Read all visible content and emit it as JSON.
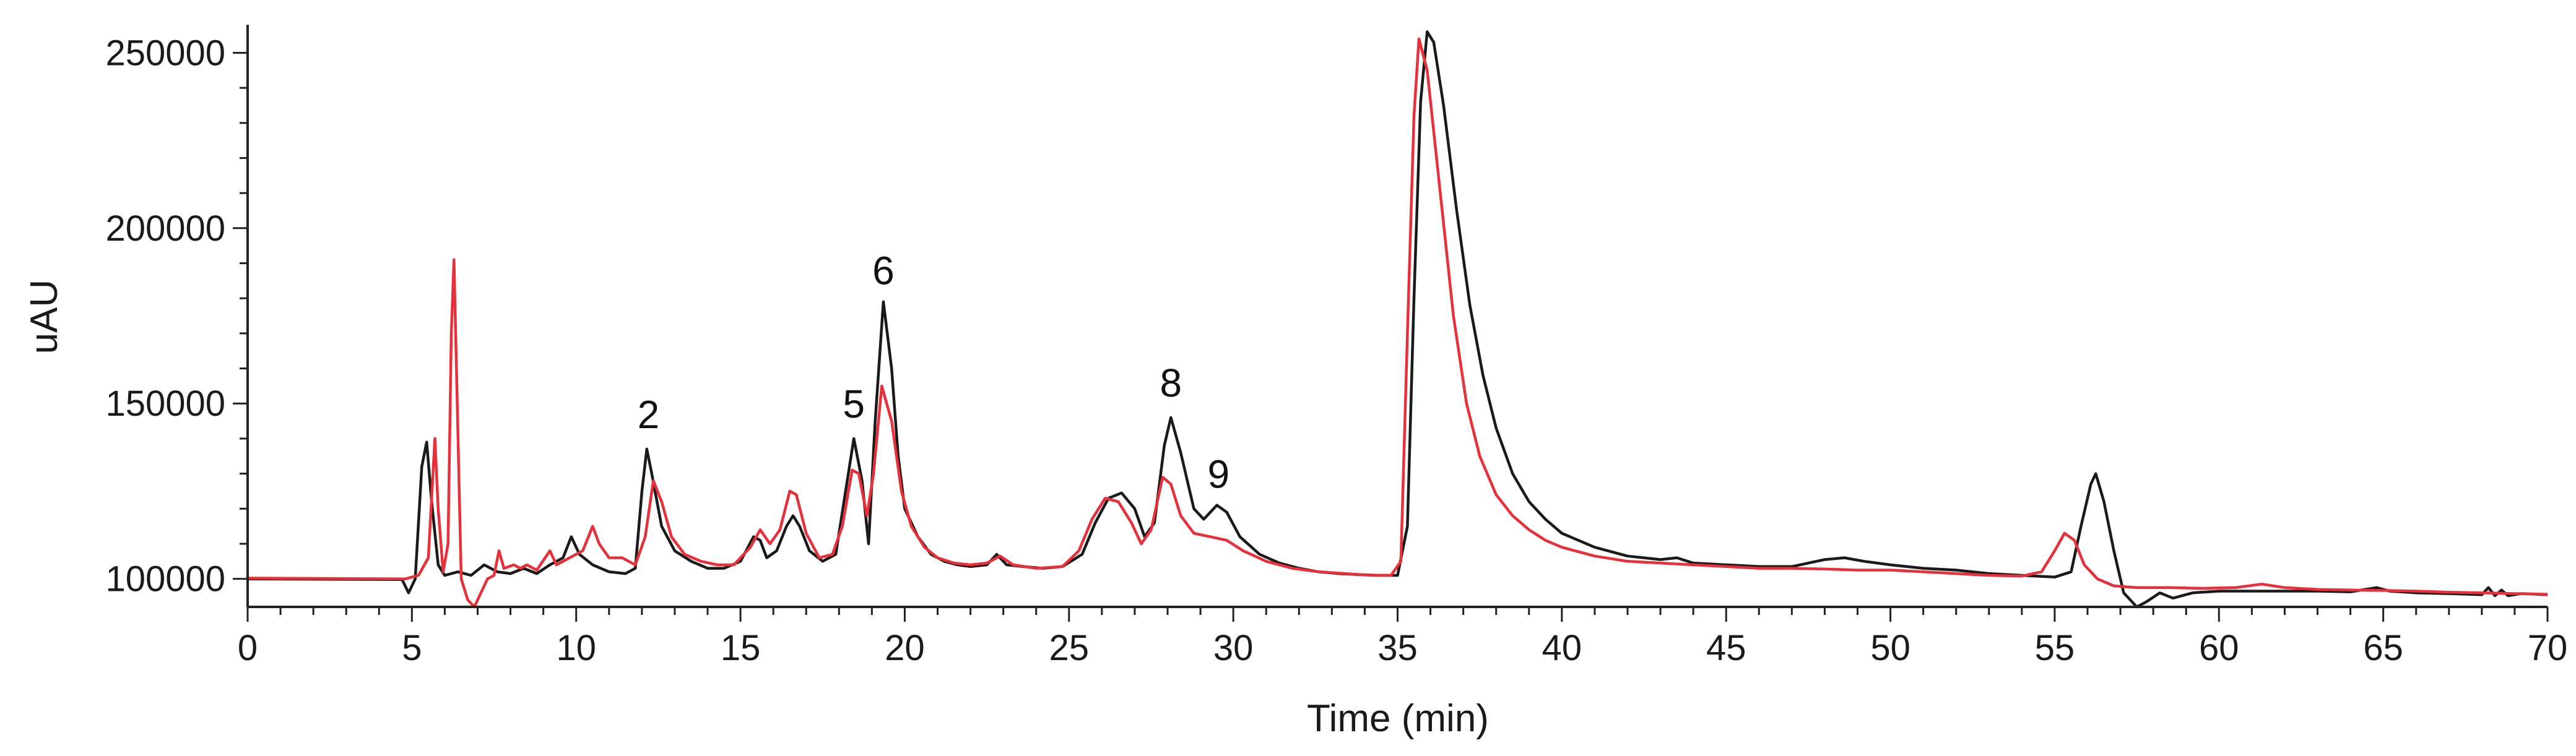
{
  "chart_data": {
    "type": "line",
    "title": "",
    "xlabel": "Time (min)",
    "ylabel": "uAU",
    "xlim": [
      0,
      70
    ],
    "ylim": [
      92000,
      258000
    ],
    "x_ticks": [
      0,
      5,
      10,
      15,
      20,
      25,
      30,
      35,
      40,
      45,
      50,
      55,
      60,
      65,
      70
    ],
    "y_ticks": [
      100000,
      150000,
      200000,
      250000
    ],
    "x_tick_labels": [
      "0",
      "5",
      "10",
      "15",
      "20",
      "25",
      "30",
      "35",
      "40",
      "45",
      "50",
      "55",
      "60",
      "65",
      "70"
    ],
    "y_tick_labels": [
      "100000",
      "150000",
      "200000",
      "250000"
    ],
    "grid": false,
    "legend": "none",
    "series": [
      {
        "color": "#1a1a1a",
        "points": [
          [
            0,
            100000
          ],
          [
            4.7,
            99800
          ],
          [
            4.9,
            96000
          ],
          [
            5.1,
            100000
          ],
          [
            5.3,
            132000
          ],
          [
            5.45,
            139000
          ],
          [
            5.6,
            122000
          ],
          [
            5.8,
            104000
          ],
          [
            6.0,
            101000
          ],
          [
            6.4,
            102000
          ],
          [
            6.8,
            101000
          ],
          [
            7.2,
            104000
          ],
          [
            7.6,
            102000
          ],
          [
            8.0,
            101500
          ],
          [
            8.4,
            103000
          ],
          [
            8.8,
            101500
          ],
          [
            9.2,
            104000
          ],
          [
            9.6,
            106000
          ],
          [
            9.85,
            112000
          ],
          [
            10.1,
            107000
          ],
          [
            10.5,
            104000
          ],
          [
            11.0,
            102000
          ],
          [
            11.5,
            101500
          ],
          [
            11.8,
            103000
          ],
          [
            12.0,
            125000
          ],
          [
            12.15,
            137000
          ],
          [
            12.3,
            130000
          ],
          [
            12.6,
            115000
          ],
          [
            13.0,
            108000
          ],
          [
            13.5,
            105000
          ],
          [
            14.0,
            103000
          ],
          [
            14.5,
            103000
          ],
          [
            15.0,
            105000
          ],
          [
            15.4,
            112000
          ],
          [
            15.6,
            111000
          ],
          [
            15.8,
            106000
          ],
          [
            16.1,
            108000
          ],
          [
            16.4,
            115000
          ],
          [
            16.6,
            118000
          ],
          [
            16.8,
            115000
          ],
          [
            17.1,
            108000
          ],
          [
            17.5,
            105000
          ],
          [
            17.9,
            107000
          ],
          [
            18.2,
            125000
          ],
          [
            18.45,
            140000
          ],
          [
            18.7,
            128000
          ],
          [
            18.9,
            110000
          ],
          [
            19.1,
            145000
          ],
          [
            19.35,
            179000
          ],
          [
            19.6,
            160000
          ],
          [
            19.8,
            135000
          ],
          [
            20.0,
            120000
          ],
          [
            20.4,
            112000
          ],
          [
            20.8,
            107000
          ],
          [
            21.2,
            105000
          ],
          [
            21.6,
            104000
          ],
          [
            22.0,
            103500
          ],
          [
            22.5,
            104000
          ],
          [
            22.8,
            107000
          ],
          [
            23.1,
            104000
          ],
          [
            23.6,
            103500
          ],
          [
            24.2,
            103000
          ],
          [
            24.8,
            103500
          ],
          [
            25.4,
            107000
          ],
          [
            25.8,
            116000
          ],
          [
            26.2,
            123000
          ],
          [
            26.6,
            124500
          ],
          [
            27.0,
            120000
          ],
          [
            27.3,
            112000
          ],
          [
            27.6,
            116000
          ],
          [
            27.9,
            138000
          ],
          [
            28.1,
            146000
          ],
          [
            28.4,
            136000
          ],
          [
            28.8,
            120000
          ],
          [
            29.1,
            117000
          ],
          [
            29.5,
            121000
          ],
          [
            29.8,
            119000
          ],
          [
            30.2,
            112000
          ],
          [
            30.8,
            107000
          ],
          [
            31.4,
            104500
          ],
          [
            32.0,
            103000
          ],
          [
            32.6,
            102000
          ],
          [
            33.2,
            101500
          ],
          [
            33.8,
            101200
          ],
          [
            34.4,
            101000
          ],
          [
            35.0,
            101000
          ],
          [
            35.3,
            115000
          ],
          [
            35.5,
            180000
          ],
          [
            35.7,
            236000
          ],
          [
            35.9,
            256000
          ],
          [
            36.1,
            253000
          ],
          [
            36.4,
            235000
          ],
          [
            36.8,
            205000
          ],
          [
            37.2,
            178000
          ],
          [
            37.6,
            158000
          ],
          [
            38.0,
            143000
          ],
          [
            38.5,
            130000
          ],
          [
            39.0,
            122000
          ],
          [
            39.5,
            117000
          ],
          [
            40.0,
            113000
          ],
          [
            41.0,
            109000
          ],
          [
            42.0,
            106500
          ],
          [
            43.0,
            105500
          ],
          [
            43.5,
            106000
          ],
          [
            44.0,
            104500
          ],
          [
            45.0,
            104000
          ],
          [
            46.0,
            103500
          ],
          [
            47.0,
            103500
          ],
          [
            48.0,
            105500
          ],
          [
            48.6,
            106000
          ],
          [
            49.2,
            105000
          ],
          [
            50.0,
            104000
          ],
          [
            51.0,
            103000
          ],
          [
            52.0,
            102500
          ],
          [
            53.0,
            101500
          ],
          [
            54.0,
            101000
          ],
          [
            55.0,
            100500
          ],
          [
            55.5,
            102000
          ],
          [
            55.8,
            115000
          ],
          [
            56.1,
            127000
          ],
          [
            56.25,
            130000
          ],
          [
            56.5,
            122000
          ],
          [
            56.8,
            108000
          ],
          [
            57.1,
            96000
          ],
          [
            57.5,
            92000
          ],
          [
            57.8,
            93500
          ],
          [
            58.2,
            96000
          ],
          [
            58.6,
            94500
          ],
          [
            59.2,
            96000
          ],
          [
            60.0,
            96500
          ],
          [
            61.0,
            96500
          ],
          [
            62.0,
            96500
          ],
          [
            63.0,
            96500
          ],
          [
            64.0,
            96300
          ],
          [
            64.8,
            97500
          ],
          [
            65.2,
            96500
          ],
          [
            66.0,
            96000
          ],
          [
            67.0,
            95800
          ],
          [
            68.0,
            95500
          ],
          [
            68.2,
            97500
          ],
          [
            68.4,
            95200
          ],
          [
            68.6,
            96800
          ],
          [
            68.8,
            95200
          ],
          [
            69.2,
            95800
          ],
          [
            70,
            95500
          ]
        ]
      },
      {
        "color": "#e8303a",
        "points": [
          [
            0,
            100200
          ],
          [
            4.8,
            100000
          ],
          [
            5.2,
            101000
          ],
          [
            5.5,
            106000
          ],
          [
            5.7,
            140000
          ],
          [
            5.8,
            120000
          ],
          [
            5.95,
            102000
          ],
          [
            6.1,
            110000
          ],
          [
            6.2,
            170000
          ],
          [
            6.28,
            191000
          ],
          [
            6.38,
            150000
          ],
          [
            6.5,
            100000
          ],
          [
            6.7,
            94000
          ],
          [
            6.9,
            92000
          ],
          [
            7.1,
            96000
          ],
          [
            7.3,
            100000
          ],
          [
            7.5,
            101000
          ],
          [
            7.65,
            108000
          ],
          [
            7.8,
            103000
          ],
          [
            8.1,
            104000
          ],
          [
            8.3,
            103000
          ],
          [
            8.5,
            104000
          ],
          [
            8.8,
            102500
          ],
          [
            9.2,
            108000
          ],
          [
            9.4,
            104000
          ],
          [
            9.8,
            106000
          ],
          [
            10.2,
            108000
          ],
          [
            10.5,
            115000
          ],
          [
            10.7,
            110000
          ],
          [
            11.0,
            106000
          ],
          [
            11.4,
            106000
          ],
          [
            11.8,
            104000
          ],
          [
            12.1,
            112000
          ],
          [
            12.35,
            128000
          ],
          [
            12.6,
            122000
          ],
          [
            12.9,
            112000
          ],
          [
            13.3,
            107000
          ],
          [
            13.8,
            105000
          ],
          [
            14.3,
            104000
          ],
          [
            14.8,
            104000
          ],
          [
            15.3,
            109000
          ],
          [
            15.6,
            114000
          ],
          [
            15.9,
            110000
          ],
          [
            16.2,
            114000
          ],
          [
            16.5,
            125000
          ],
          [
            16.7,
            124000
          ],
          [
            17.0,
            113000
          ],
          [
            17.4,
            106000
          ],
          [
            17.8,
            107000
          ],
          [
            18.1,
            115000
          ],
          [
            18.4,
            131000
          ],
          [
            18.6,
            130000
          ],
          [
            18.85,
            118000
          ],
          [
            19.05,
            130000
          ],
          [
            19.3,
            155000
          ],
          [
            19.6,
            145000
          ],
          [
            19.9,
            125000
          ],
          [
            20.2,
            115000
          ],
          [
            20.6,
            109000
          ],
          [
            21.0,
            106000
          ],
          [
            21.5,
            104500
          ],
          [
            22.0,
            104000
          ],
          [
            22.5,
            104500
          ],
          [
            22.9,
            106500
          ],
          [
            23.3,
            104000
          ],
          [
            24.0,
            103000
          ],
          [
            24.8,
            103500
          ],
          [
            25.3,
            108000
          ],
          [
            25.7,
            117000
          ],
          [
            26.1,
            123000
          ],
          [
            26.5,
            122000
          ],
          [
            26.9,
            116000
          ],
          [
            27.2,
            110000
          ],
          [
            27.5,
            114000
          ],
          [
            27.85,
            129000
          ],
          [
            28.1,
            127000
          ],
          [
            28.4,
            118000
          ],
          [
            28.8,
            113000
          ],
          [
            29.3,
            112000
          ],
          [
            29.8,
            111000
          ],
          [
            30.3,
            108000
          ],
          [
            31.0,
            105000
          ],
          [
            31.8,
            103000
          ],
          [
            32.6,
            102000
          ],
          [
            33.4,
            101500
          ],
          [
            34.2,
            101000
          ],
          [
            34.8,
            101000
          ],
          [
            35.1,
            105000
          ],
          [
            35.3,
            170000
          ],
          [
            35.5,
            232000
          ],
          [
            35.65,
            254000
          ],
          [
            35.9,
            245000
          ],
          [
            36.3,
            210000
          ],
          [
            36.7,
            175000
          ],
          [
            37.1,
            150000
          ],
          [
            37.5,
            135000
          ],
          [
            38.0,
            124000
          ],
          [
            38.5,
            118000
          ],
          [
            39.0,
            114000
          ],
          [
            39.5,
            111000
          ],
          [
            40.0,
            109000
          ],
          [
            41.0,
            106500
          ],
          [
            42.0,
            105000
          ],
          [
            43.0,
            104500
          ],
          [
            44.0,
            104000
          ],
          [
            45.0,
            103500
          ],
          [
            46.0,
            103000
          ],
          [
            47.0,
            103000
          ],
          [
            48.0,
            102800
          ],
          [
            49.0,
            102500
          ],
          [
            50.0,
            102500
          ],
          [
            51.0,
            102000
          ],
          [
            52.0,
            101500
          ],
          [
            53.0,
            101000
          ],
          [
            54.0,
            100800
          ],
          [
            54.6,
            102000
          ],
          [
            55.0,
            108000
          ],
          [
            55.3,
            113000
          ],
          [
            55.6,
            111000
          ],
          [
            55.9,
            104000
          ],
          [
            56.3,
            100000
          ],
          [
            56.8,
            98000
          ],
          [
            57.5,
            97500
          ],
          [
            58.5,
            97500
          ],
          [
            59.5,
            97300
          ],
          [
            60.5,
            97500
          ],
          [
            61.3,
            98500
          ],
          [
            62.0,
            97500
          ],
          [
            63.0,
            97000
          ],
          [
            64.0,
            96800
          ],
          [
            65.0,
            96700
          ],
          [
            66.0,
            96500
          ],
          [
            67.0,
            96200
          ],
          [
            68.0,
            96000
          ],
          [
            69.0,
            95800
          ],
          [
            70,
            95600
          ]
        ]
      }
    ],
    "annotations": [
      {
        "text": "2",
        "x": 12.2,
        "y": 143000
      },
      {
        "text": "5",
        "x": 18.45,
        "y": 146000
      },
      {
        "text": "6",
        "x": 19.35,
        "y": 184000
      },
      {
        "text": "8",
        "x": 28.1,
        "y": 152000
      },
      {
        "text": "9",
        "x": 29.55,
        "y": 126000
      }
    ]
  }
}
